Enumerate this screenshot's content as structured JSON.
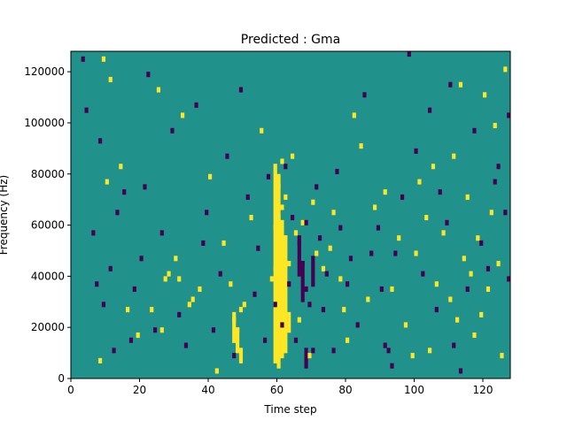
{
  "chart_data": {
    "type": "heatmap",
    "title": "Predicted : Gma",
    "xlabel": "Time step",
    "ylabel": "Frequency (Hz)",
    "xlim": [
      0,
      128
    ],
    "ylim": [
      0,
      128000
    ],
    "xticks": [
      0,
      20,
      40,
      60,
      80,
      100,
      120
    ],
    "yticks": [
      0,
      20000,
      40000,
      60000,
      80000,
      100000,
      120000
    ],
    "xtick_labels": [
      "0",
      "20",
      "40",
      "60",
      "80",
      "100",
      "120"
    ],
    "ytick_labels": [
      "0",
      "20000",
      "40000",
      "60000",
      "80000",
      "100000",
      "120000"
    ],
    "cell_height": 2000,
    "background_value": 0.5,
    "colors": {
      "low": "#440154",
      "mid": "#21918c",
      "high": "#fde725"
    },
    "high_cells": [
      [
        8,
        6000
      ],
      [
        9,
        124000
      ],
      [
        10,
        76000
      ],
      [
        11,
        116000
      ],
      [
        14,
        82000
      ],
      [
        16,
        26000
      ],
      [
        19,
        16000
      ],
      [
        23,
        26000
      ],
      [
        25,
        112000
      ],
      [
        26,
        18000
      ],
      [
        27,
        38000
      ],
      [
        28,
        40000
      ],
      [
        30,
        46000
      ],
      [
        31,
        38000
      ],
      [
        32,
        102000
      ],
      [
        34,
        28000
      ],
      [
        35,
        30000
      ],
      [
        37,
        34000
      ],
      [
        40,
        78000
      ],
      [
        42,
        2000
      ],
      [
        44,
        52000
      ],
      [
        46,
        36000
      ],
      [
        47,
        22000
      ],
      [
        48,
        18000
      ],
      [
        49,
        26000
      ],
      [
        50,
        28000
      ],
      [
        52,
        62000
      ],
      [
        55,
        96000
      ],
      [
        58,
        38000
      ],
      [
        59,
        42000
      ],
      [
        59,
        58000
      ],
      [
        60,
        46000
      ],
      [
        60,
        62000
      ],
      [
        60,
        74000
      ],
      [
        61,
        30000
      ],
      [
        61,
        66000
      ],
      [
        61,
        84000
      ],
      [
        62,
        54000
      ],
      [
        62,
        70000
      ],
      [
        63,
        44000
      ],
      [
        64,
        86000
      ],
      [
        65,
        56000
      ],
      [
        66,
        22000
      ],
      [
        67,
        60000
      ],
      [
        69,
        8000
      ],
      [
        70,
        68000
      ],
      [
        71,
        48000
      ],
      [
        73,
        42000
      ],
      [
        75,
        50000
      ],
      [
        76,
        64000
      ],
      [
        78,
        38000
      ],
      [
        79,
        26000
      ],
      [
        80,
        14000
      ],
      [
        82,
        102000
      ],
      [
        84,
        90000
      ],
      [
        86,
        30000
      ],
      [
        88,
        66000
      ],
      [
        91,
        72000
      ],
      [
        93,
        34000
      ],
      [
        95,
        54000
      ],
      [
        97,
        20000
      ],
      [
        99,
        8000
      ],
      [
        100,
        48000
      ],
      [
        101,
        76000
      ],
      [
        103,
        62000
      ],
      [
        104,
        10000
      ],
      [
        105,
        82000
      ],
      [
        106,
        36000
      ],
      [
        108,
        56000
      ],
      [
        110,
        30000
      ],
      [
        111,
        86000
      ],
      [
        112,
        22000
      ],
      [
        113,
        114000
      ],
      [
        114,
        46000
      ],
      [
        115,
        70000
      ],
      [
        116,
        40000
      ],
      [
        117,
        16000
      ],
      [
        118,
        54000
      ],
      [
        119,
        24000
      ],
      [
        120,
        110000
      ],
      [
        121,
        34000
      ],
      [
        122,
        64000
      ],
      [
        123,
        98000
      ],
      [
        124,
        44000
      ],
      [
        125,
        8000
      ],
      [
        126,
        120000
      ]
    ],
    "low_cells": [
      [
        3,
        124000
      ],
      [
        4,
        104000
      ],
      [
        6,
        56000
      ],
      [
        7,
        36000
      ],
      [
        8,
        92000
      ],
      [
        9,
        28000
      ],
      [
        11,
        42000
      ],
      [
        12,
        10000
      ],
      [
        13,
        64000
      ],
      [
        15,
        72000
      ],
      [
        17,
        14000
      ],
      [
        18,
        34000
      ],
      [
        20,
        46000
      ],
      [
        21,
        74000
      ],
      [
        22,
        118000
      ],
      [
        24,
        18000
      ],
      [
        26,
        56000
      ],
      [
        29,
        96000
      ],
      [
        31,
        24000
      ],
      [
        33,
        12000
      ],
      [
        36,
        106000
      ],
      [
        38,
        52000
      ],
      [
        39,
        64000
      ],
      [
        41,
        18000
      ],
      [
        43,
        40000
      ],
      [
        45,
        86000
      ],
      [
        47,
        8000
      ],
      [
        49,
        112000
      ],
      [
        51,
        70000
      ],
      [
        53,
        32000
      ],
      [
        54,
        50000
      ],
      [
        56,
        14000
      ],
      [
        57,
        78000
      ],
      [
        59,
        28000
      ],
      [
        61,
        20000
      ],
      [
        62,
        82000
      ],
      [
        63,
        36000
      ],
      [
        64,
        62000
      ],
      [
        65,
        14000
      ],
      [
        66,
        52000
      ],
      [
        67,
        44000
      ],
      [
        68,
        34000
      ],
      [
        68,
        60000
      ],
      [
        69,
        28000
      ],
      [
        70,
        10000
      ],
      [
        71,
        74000
      ],
      [
        72,
        54000
      ],
      [
        73,
        26000
      ],
      [
        74,
        40000
      ],
      [
        76,
        10000
      ],
      [
        77,
        80000
      ],
      [
        78,
        58000
      ],
      [
        80,
        36000
      ],
      [
        81,
        46000
      ],
      [
        83,
        20000
      ],
      [
        85,
        110000
      ],
      [
        87,
        48000
      ],
      [
        89,
        58000
      ],
      [
        90,
        34000
      ],
      [
        91,
        12000
      ],
      [
        92,
        10000
      ],
      [
        93,
        4000
      ],
      [
        94,
        48000
      ],
      [
        96,
        70000
      ],
      [
        98,
        126000
      ],
      [
        100,
        88000
      ],
      [
        102,
        40000
      ],
      [
        104,
        104000
      ],
      [
        106,
        26000
      ],
      [
        107,
        72000
      ],
      [
        109,
        60000
      ],
      [
        110,
        114000
      ],
      [
        111,
        12000
      ],
      [
        113,
        2000
      ],
      [
        115,
        34000
      ],
      [
        117,
        96000
      ],
      [
        119,
        52000
      ],
      [
        121,
        42000
      ],
      [
        123,
        76000
      ],
      [
        124,
        82000
      ],
      [
        126,
        64000
      ],
      [
        127,
        38000
      ],
      [
        127,
        102000
      ]
    ],
    "high_bands": [
      [
        59,
        6000,
        84000
      ],
      [
        60,
        4000,
        80000
      ],
      [
        61,
        8000,
        62000
      ],
      [
        62,
        10000,
        56000
      ],
      [
        63,
        18000,
        26000
      ],
      [
        47,
        14000,
        26000
      ],
      [
        48,
        10000,
        20000
      ],
      [
        49,
        6000,
        12000
      ]
    ],
    "low_bands": [
      [
        66,
        40000,
        56000
      ],
      [
        67,
        30000,
        46000
      ],
      [
        68,
        4000,
        12000
      ],
      [
        70,
        36000,
        48000
      ]
    ]
  }
}
